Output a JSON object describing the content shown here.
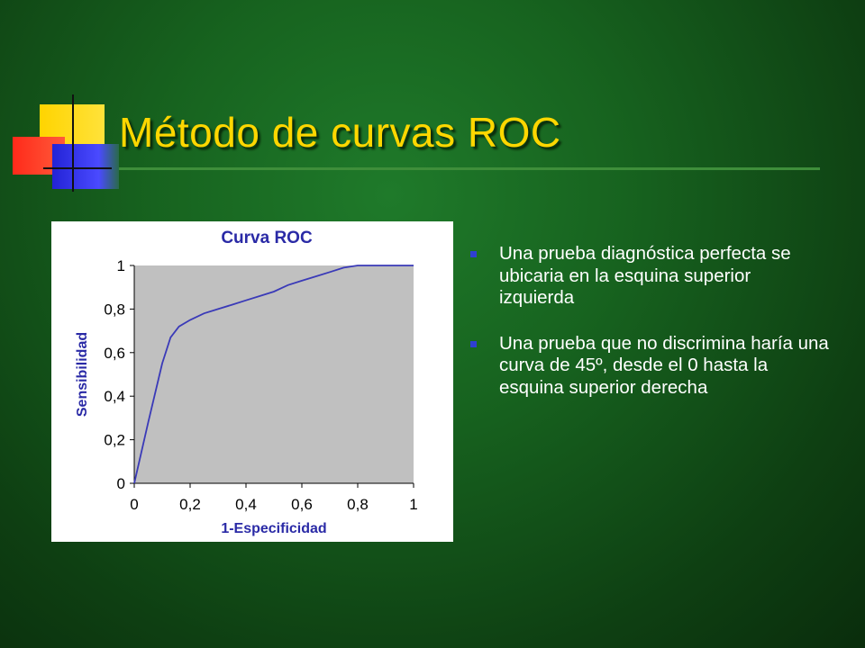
{
  "slide": {
    "title": "Método de curvas ROC",
    "bullets": [
      "Una prueba diagnóstica perfecta se ubicaria en la esquina superior izquierda",
      "Una prueba que no discrimina haría una curva de 45º, desde el 0 hasta la esquina superior derecha"
    ]
  },
  "colors": {
    "title": "#ffd700",
    "accent_blue": "#2f3fd2",
    "plot_bg": "#c0c0c0",
    "curve": "#3a3ab8",
    "chart_text": "#2a2aa6"
  },
  "chart_data": {
    "type": "line",
    "title": "Curva ROC",
    "xlabel": "1-Especificidad",
    "ylabel": "Sensibilidad",
    "xlim": [
      0,
      1
    ],
    "ylim": [
      0,
      1
    ],
    "x_ticks": [
      "0",
      "0,2",
      "0,4",
      "0,6",
      "0,8",
      "1"
    ],
    "y_ticks": [
      "0",
      "0,2",
      "0,4",
      "0,6",
      "0,8",
      "1"
    ],
    "grid": false,
    "series": [
      {
        "x": [
          0,
          0.05,
          0.1,
          0.13,
          0.16,
          0.2,
          0.25,
          0.3,
          0.35,
          0.4,
          0.45,
          0.5,
          0.55,
          0.6,
          0.65,
          0.7,
          0.75,
          0.8,
          0.85,
          0.9,
          0.95,
          1.0
        ],
        "y": [
          0,
          0.28,
          0.55,
          0.67,
          0.72,
          0.75,
          0.78,
          0.8,
          0.82,
          0.84,
          0.86,
          0.88,
          0.91,
          0.93,
          0.95,
          0.97,
          0.99,
          1.0,
          1.0,
          1.0,
          1.0,
          1.0
        ]
      }
    ]
  }
}
